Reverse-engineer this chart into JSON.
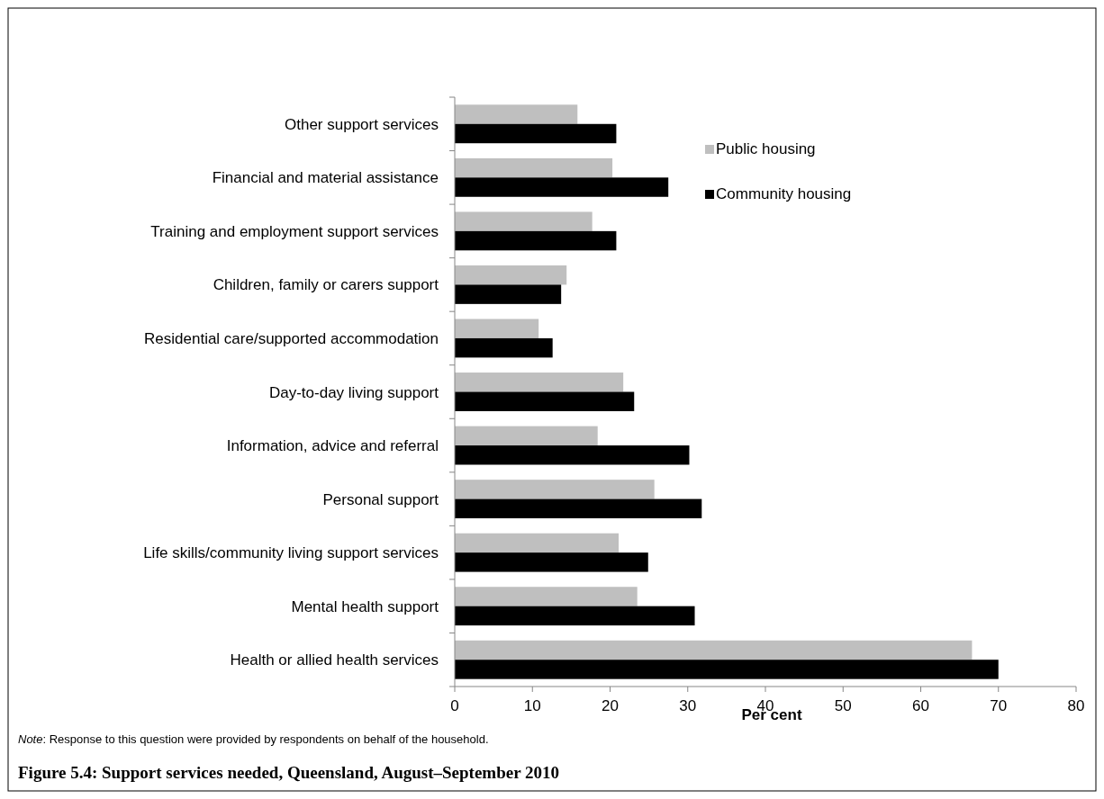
{
  "chart_data": {
    "type": "bar",
    "orientation": "horizontal",
    "title": "Figure 5.4: Support services needed, Queensland, August–September 2010",
    "xlabel": "Per cent",
    "annotations": [
      "Note: Response to this question were provided by respondents on behalf of the household."
    ],
    "categories": [
      "Other support services",
      "Financial and material assistance",
      "Training and employment support services",
      "Children, family or carers support",
      "Residential care/supported accommodation",
      "Day-to-day living support",
      "Information, advice and referral",
      "Personal support",
      "Life skills/community living support services",
      "Mental health support",
      "Health or allied health services"
    ],
    "series": [
      {
        "name": "Public housing",
        "color": "#bfbfbf",
        "values": [
          15.8,
          20.3,
          17.7,
          14.4,
          10.8,
          21.7,
          18.4,
          25.7,
          21.1,
          23.5,
          66.6
        ]
      },
      {
        "name": "Community housing",
        "color": "#000000",
        "values": [
          20.8,
          27.5,
          20.8,
          13.7,
          12.6,
          23.1,
          30.2,
          31.8,
          24.9,
          30.9,
          70.0
        ]
      }
    ],
    "xlim": [
      0,
      80
    ],
    "xticks": [
      0,
      10,
      20,
      30,
      40,
      50,
      60,
      70,
      80
    ],
    "grid": false,
    "legend": "top right"
  }
}
